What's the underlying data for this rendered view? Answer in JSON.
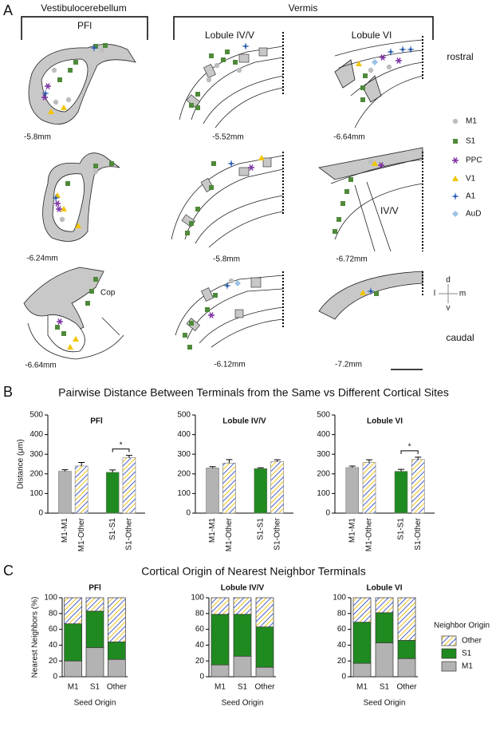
{
  "panel_a": {
    "label": "A",
    "vestibulocerebellum": "Vestibulocerebellum",
    "vermis": "Vermis",
    "pfl": "PFl",
    "lobule_iv_v": "Lobule IV/V",
    "lobule_vi": "Lobule VI",
    "rostral": "rostral",
    "caudal": "caudal",
    "sections": [
      "-5.8mm",
      "-5.52mm",
      "-6.64mm",
      "-6.24mm",
      "-5.8mm",
      "-6.72mm",
      "-6.64mm",
      "-6.12mm",
      "-7.2mm"
    ],
    "cop": "Cop",
    "iv_v": "IV/V",
    "legend": [
      "M1",
      "S1",
      "PPC",
      "V1",
      "A1",
      "AuD"
    ],
    "compass": {
      "d": "d",
      "v": "v",
      "l": "l",
      "m": "m"
    }
  },
  "panel_b": {
    "label": "B",
    "title": "Pairwise Distance Between Terminals from the Same vs Different Cortical Sites"
  },
  "panel_c": {
    "label": "C",
    "title": "Cortical Origin of Nearest Neighbor Terminals"
  },
  "chart_data": [
    {
      "type": "bar",
      "title": "PFl",
      "ylabel": "Distance (μm)",
      "categories": [
        "M1-M1",
        "M1-Other",
        "S1-S1",
        "S1-Other"
      ],
      "values": [
        213,
        240,
        208,
        282
      ],
      "errors": [
        8,
        18,
        12,
        12
      ],
      "colors": [
        "#b3b3b3",
        "#ffffff",
        "#1f8a1f",
        "#ffffff"
      ],
      "hatch": [
        false,
        true,
        false,
        true
      ],
      "ylim": [
        0,
        500
      ],
      "yticks": [
        0,
        100,
        200,
        300,
        400,
        500
      ],
      "significance": "*"
    },
    {
      "type": "bar",
      "title": "Lobule IV/V",
      "categories": [
        "M1-M1",
        "M1-Other",
        "S1-S1",
        "S1-Other"
      ],
      "values": [
        230,
        255,
        227,
        262
      ],
      "errors": [
        7,
        18,
        4,
        10
      ],
      "colors": [
        "#b3b3b3",
        "#ffffff",
        "#1f8a1f",
        "#ffffff"
      ],
      "hatch": [
        false,
        true,
        false,
        true
      ],
      "ylim": [
        0,
        500
      ],
      "yticks": [
        0,
        100,
        200,
        300,
        400,
        500
      ]
    },
    {
      "type": "bar",
      "title": "Lobule VI",
      "categories": [
        "M1-M1",
        "M1-Other",
        "S1-S1",
        "S1-Other"
      ],
      "values": [
        232,
        258,
        213,
        273
      ],
      "errors": [
        8,
        14,
        10,
        12
      ],
      "colors": [
        "#b3b3b3",
        "#ffffff",
        "#1f8a1f",
        "#ffffff"
      ],
      "hatch": [
        false,
        true,
        false,
        true
      ],
      "ylim": [
        0,
        500
      ],
      "yticks": [
        0,
        100,
        200,
        300,
        400,
        500
      ],
      "significance": "*"
    },
    {
      "type": "stacked_bar",
      "title": "PFl",
      "ylabel": "Nearest Neighbors (%)",
      "xlabel": "Seed Origin",
      "categories": [
        "M1",
        "S1",
        "Other"
      ],
      "series": [
        {
          "name": "M1",
          "color": "#b3b3b3",
          "values": [
            20,
            37,
            22
          ]
        },
        {
          "name": "S1",
          "color": "#1f8a1f",
          "values": [
            47,
            46,
            22
          ]
        },
        {
          "name": "Other",
          "color": "#ffffff",
          "hatch": true,
          "values": [
            33,
            17,
            56
          ]
        }
      ],
      "ylim": [
        0,
        100
      ],
      "yticks": [
        0,
        20,
        40,
        60,
        80,
        100
      ]
    },
    {
      "type": "stacked_bar",
      "title": "Lobule IV/V",
      "xlabel": "Seed Origin",
      "categories": [
        "M1",
        "S1",
        "Other"
      ],
      "series": [
        {
          "name": "M1",
          "color": "#b3b3b3",
          "values": [
            15,
            26,
            12
          ]
        },
        {
          "name": "S1",
          "color": "#1f8a1f",
          "values": [
            64,
            53,
            51
          ]
        },
        {
          "name": "Other",
          "color": "#ffffff",
          "hatch": true,
          "values": [
            21,
            21,
            37
          ]
        }
      ],
      "ylim": [
        0,
        100
      ],
      "yticks": [
        0,
        20,
        40,
        60,
        80,
        100
      ]
    },
    {
      "type": "stacked_bar",
      "title": "Lobule VI",
      "xlabel": "Seed Origin",
      "legend_title": "Neighbor Origin",
      "legend": "right",
      "categories": [
        "M1",
        "S1",
        "Other"
      ],
      "series": [
        {
          "name": "M1",
          "color": "#b3b3b3",
          "values": [
            17,
            43,
            23
          ]
        },
        {
          "name": "S1",
          "color": "#1f8a1f",
          "values": [
            52,
            38,
            23
          ]
        },
        {
          "name": "Other",
          "color": "#ffffff",
          "hatch": true,
          "values": [
            31,
            19,
            54
          ]
        }
      ],
      "ylim": [
        0,
        100
      ],
      "yticks": [
        0,
        20,
        40,
        60,
        80,
        100
      ]
    }
  ]
}
